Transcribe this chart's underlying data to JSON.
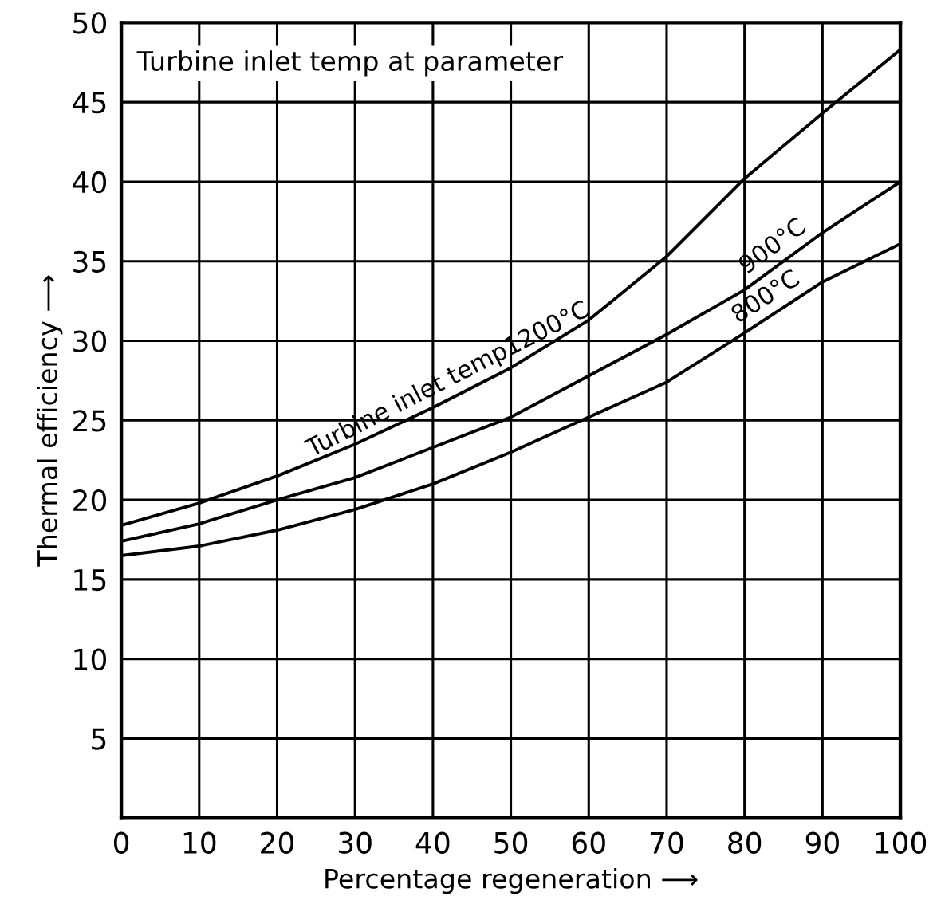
{
  "chart_data": {
    "type": "line",
    "xlabel": "Percentage regeneration ⟶",
    "ylabel": "Thermal efficiency ⟶",
    "x": [
      0,
      10,
      20,
      30,
      40,
      50,
      60,
      70,
      80,
      90,
      100
    ],
    "series": [
      {
        "name": "Turbine inlet temp1200°C",
        "color": "#000000",
        "values": [
          18.4,
          19.8,
          21.5,
          23.5,
          25.8,
          28.3,
          31.3,
          35.3,
          40.2,
          44.3,
          48.3
        ]
      },
      {
        "name": "900°C",
        "color": "#000000",
        "values": [
          17.4,
          18.5,
          20.0,
          21.4,
          23.3,
          25.2,
          27.8,
          30.4,
          33.2,
          36.8,
          40.0
        ]
      },
      {
        "name": "800°C",
        "color": "#000000",
        "values": [
          16.5,
          17.1,
          18.1,
          19.4,
          21.0,
          23.0,
          25.2,
          27.4,
          30.5,
          33.7,
          36.1
        ]
      }
    ],
    "annotations": [
      "Turbine inlet temp at parameter"
    ],
    "xlim": [
      0,
      100
    ],
    "ylim": [
      0,
      50
    ],
    "xticks": [
      0,
      10,
      20,
      30,
      40,
      50,
      60,
      70,
      80,
      90,
      100
    ],
    "yticks": [
      5,
      10,
      15,
      20,
      25,
      30,
      35,
      40,
      45,
      50
    ],
    "grid": true,
    "marker": "none",
    "line_style": "solid",
    "legend": false
  }
}
